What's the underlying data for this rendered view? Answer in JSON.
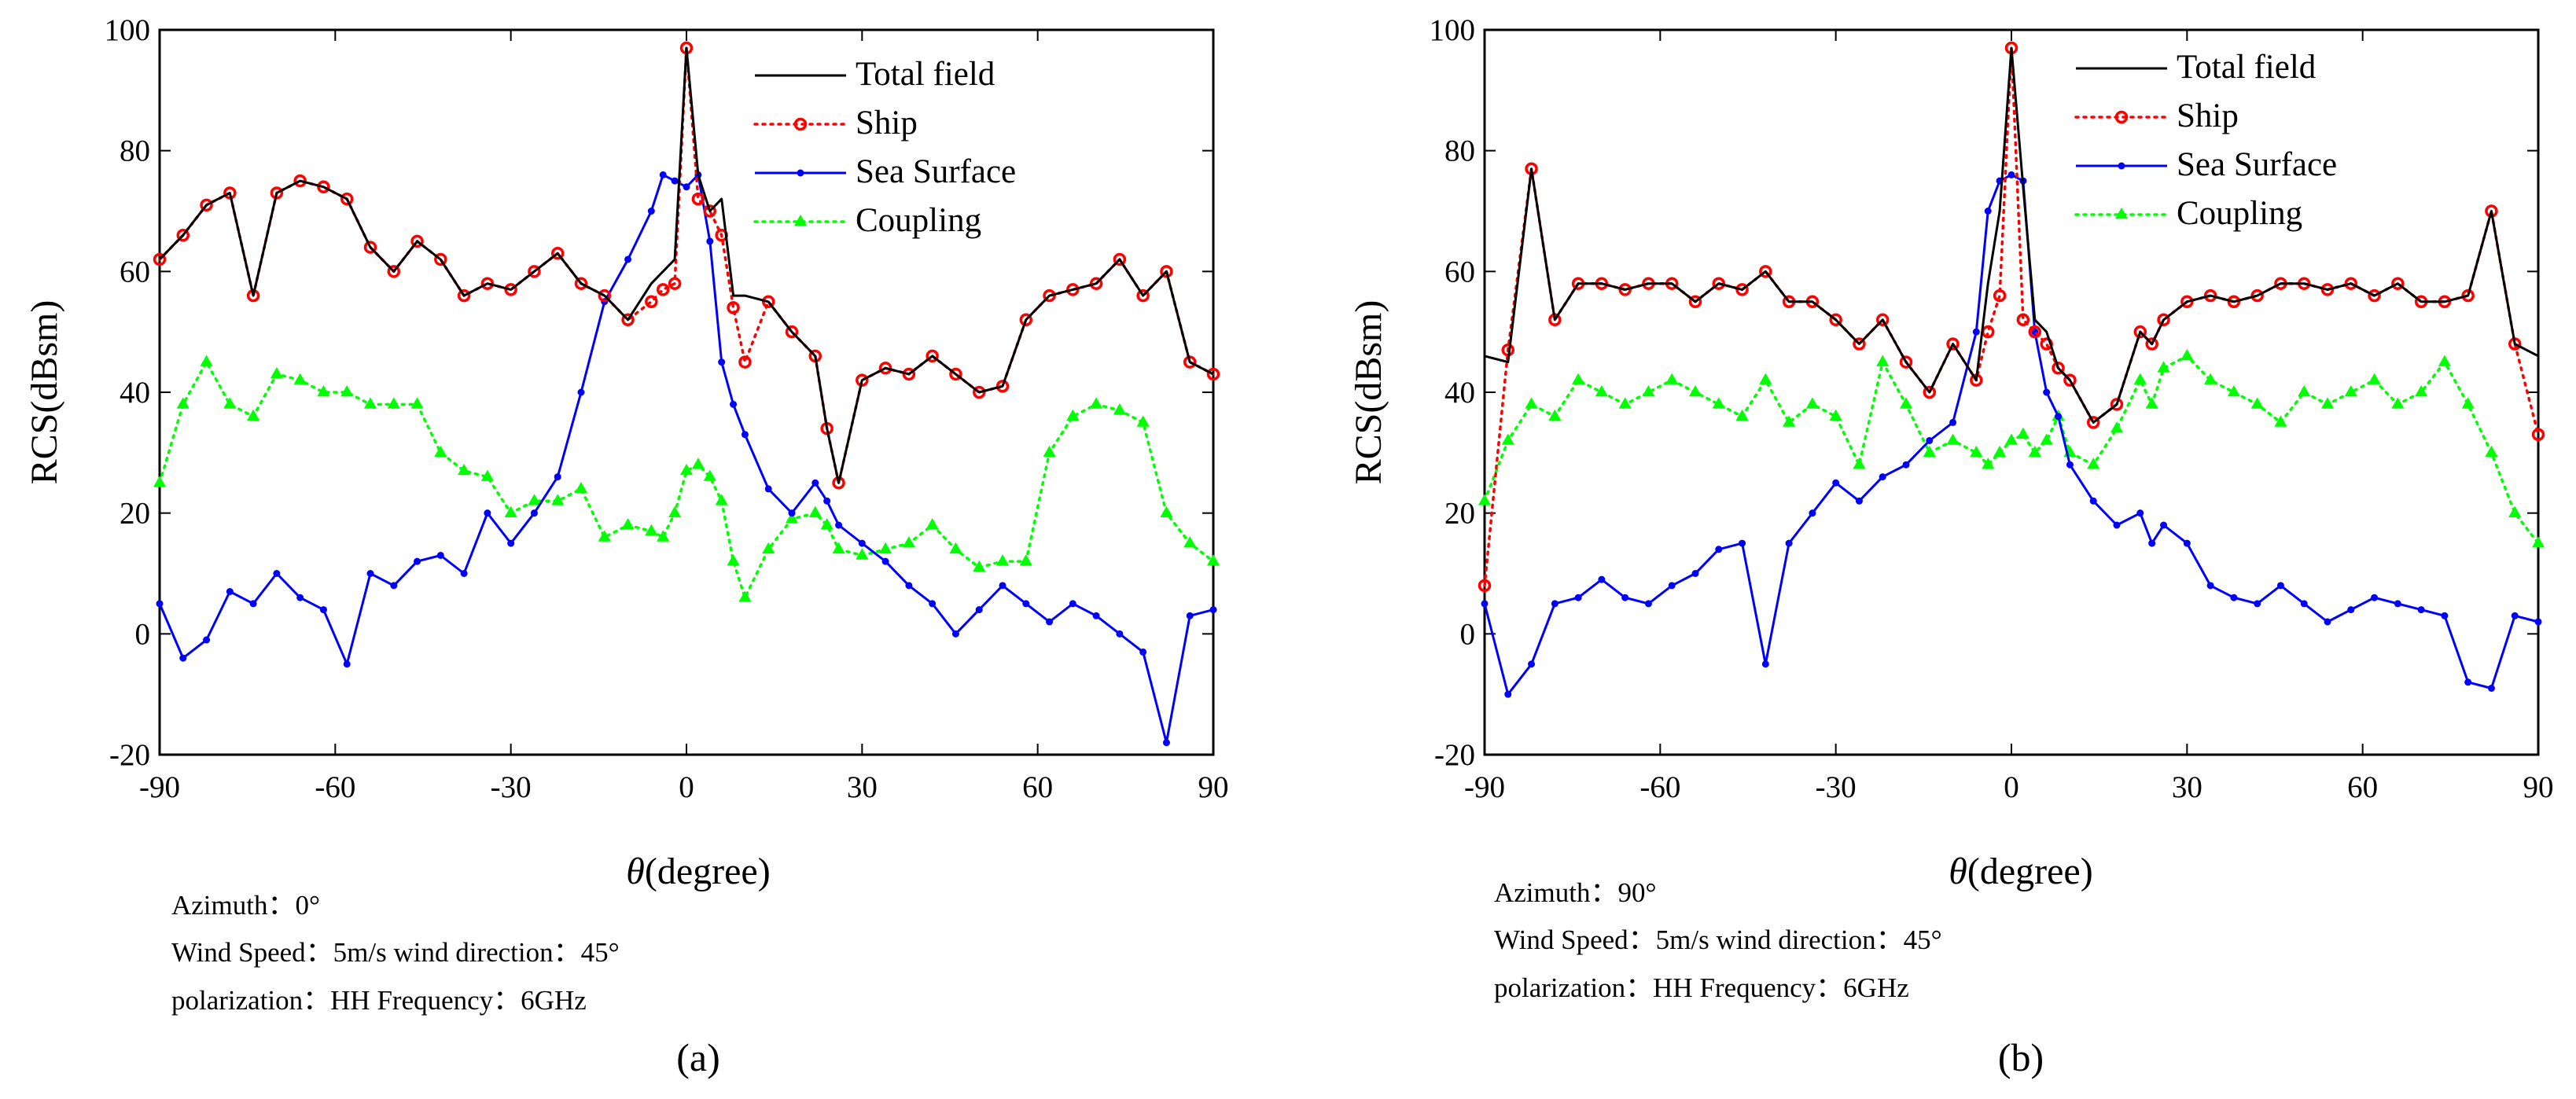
{
  "figure": {
    "panels": [
      {
        "caption": "(a)",
        "params": [
          "Azimuth：0°",
          "Wind Speed：5m/s    wind direction：45°",
          "polarization：HH    Frequency：6GHz"
        ]
      },
      {
        "caption": "(b)",
        "params": [
          "Azimuth：90°",
          "Wind Speed：5m/s    wind direction：45°",
          "polarization：HH    Frequency：6GHz"
        ]
      }
    ]
  },
  "chart_data": [
    {
      "type": "line",
      "title": "",
      "xlabel_symbol": "θ",
      "xlabel": "(degree)",
      "ylabel": "RCS(dBsm)",
      "xlim": [
        -90,
        90
      ],
      "ylim": [
        -20,
        100
      ],
      "xticks": [
        -90,
        -60,
        -30,
        0,
        30,
        60,
        90
      ],
      "yticks": [
        -20,
        0,
        20,
        40,
        60,
        80,
        100
      ],
      "legend_position": "top-right",
      "x": [
        -90,
        -86,
        -82,
        -78,
        -74,
        -70,
        -66,
        -62,
        -58,
        -54,
        -50,
        -46,
        -42,
        -38,
        -34,
        -30,
        -26,
        -22,
        -18,
        -14,
        -10,
        -6,
        -4,
        -2,
        0,
        2,
        4,
        6,
        8,
        10,
        14,
        18,
        22,
        24,
        26,
        30,
        34,
        38,
        42,
        46,
        50,
        54,
        58,
        62,
        66,
        70,
        74,
        78,
        82,
        86,
        90
      ],
      "series": [
        {
          "name": "Total field",
          "color": "#000000",
          "style": "solid",
          "marker": "none",
          "values": [
            62,
            66,
            71,
            73,
            56,
            73,
            75,
            74,
            72,
            64,
            60,
            65,
            62,
            56,
            58,
            57,
            60,
            63,
            58,
            56,
            52,
            58,
            60,
            62,
            97,
            76,
            70,
            72,
            56,
            56,
            55,
            50,
            46,
            34,
            25,
            42,
            44,
            43,
            46,
            43,
            40,
            41,
            52,
            56,
            57,
            58,
            62,
            56,
            60,
            45,
            43
          ]
        },
        {
          "name": "Ship",
          "color": "#ff0000",
          "style": "dotted",
          "marker": "circle",
          "values": [
            62,
            66,
            71,
            73,
            56,
            73,
            75,
            74,
            72,
            64,
            60,
            65,
            62,
            56,
            58,
            57,
            60,
            63,
            58,
            56,
            52,
            55,
            57,
            58,
            97,
            72,
            70,
            66,
            54,
            45,
            55,
            50,
            46,
            34,
            25,
            42,
            44,
            43,
            46,
            43,
            40,
            41,
            52,
            56,
            57,
            58,
            62,
            56,
            60,
            45,
            43
          ]
        },
        {
          "name": "Sea Surface",
          "color": "#0000ff",
          "style": "solid",
          "marker": "dot",
          "values": [
            5,
            -4,
            -1,
            7,
            5,
            10,
            6,
            4,
            -5,
            10,
            8,
            12,
            13,
            10,
            20,
            15,
            20,
            26,
            40,
            55,
            62,
            70,
            76,
            75,
            74,
            76,
            65,
            45,
            38,
            33,
            24,
            20,
            25,
            22,
            18,
            15,
            12,
            8,
            5,
            0,
            4,
            8,
            5,
            2,
            5,
            3,
            0,
            -3,
            -18,
            3,
            4
          ]
        },
        {
          "name": "Coupling",
          "color": "#00ff00",
          "style": "dotted",
          "marker": "triangle",
          "values": [
            25,
            38,
            45,
            38,
            36,
            43,
            42,
            40,
            40,
            38,
            38,
            38,
            30,
            27,
            26,
            20,
            22,
            22,
            24,
            16,
            18,
            17,
            16,
            20,
            27,
            28,
            26,
            22,
            12,
            6,
            14,
            19,
            20,
            18,
            14,
            13,
            14,
            15,
            18,
            14,
            11,
            12,
            12,
            30,
            36,
            38,
            37,
            35,
            20,
            15,
            12
          ]
        }
      ]
    },
    {
      "type": "line",
      "title": "",
      "xlabel_symbol": "θ",
      "xlabel": "(degree)",
      "ylabel": "RCS(dBsm)",
      "xlim": [
        -90,
        90
      ],
      "ylim": [
        -20,
        100
      ],
      "xticks": [
        -90,
        -60,
        -30,
        0,
        30,
        60,
        90
      ],
      "yticks": [
        -20,
        0,
        20,
        40,
        60,
        80,
        100
      ],
      "legend_position": "top-right",
      "x": [
        -90,
        -86,
        -82,
        -78,
        -74,
        -70,
        -66,
        -62,
        -58,
        -54,
        -50,
        -46,
        -42,
        -38,
        -34,
        -30,
        -26,
        -22,
        -18,
        -14,
        -10,
        -6,
        -4,
        -2,
        0,
        2,
        4,
        6,
        8,
        10,
        14,
        18,
        22,
        24,
        26,
        30,
        34,
        38,
        42,
        46,
        50,
        54,
        58,
        62,
        66,
        70,
        74,
        78,
        82,
        86,
        90
      ],
      "series": [
        {
          "name": "Total field",
          "color": "#000000",
          "style": "solid",
          "marker": "none",
          "values": [
            46,
            45,
            77,
            52,
            58,
            58,
            57,
            58,
            58,
            55,
            58,
            57,
            60,
            55,
            55,
            52,
            48,
            52,
            45,
            40,
            48,
            42,
            58,
            70,
            97,
            74,
            52,
            50,
            44,
            42,
            35,
            38,
            50,
            48,
            52,
            55,
            56,
            55,
            56,
            58,
            58,
            57,
            58,
            56,
            58,
            55,
            55,
            56,
            70,
            48,
            46
          ]
        },
        {
          "name": "Ship",
          "color": "#ff0000",
          "style": "dotted",
          "marker": "circle",
          "values": [
            8,
            47,
            77,
            52,
            58,
            58,
            57,
            58,
            58,
            55,
            58,
            57,
            60,
            55,
            55,
            52,
            48,
            52,
            45,
            40,
            48,
            42,
            50,
            56,
            97,
            52,
            50,
            48,
            44,
            42,
            35,
            38,
            50,
            48,
            52,
            55,
            56,
            55,
            56,
            58,
            58,
            57,
            58,
            56,
            58,
            55,
            55,
            56,
            70,
            48,
            33
          ]
        },
        {
          "name": "Sea Surface",
          "color": "#0000ff",
          "style": "solid",
          "marker": "dot",
          "values": [
            5,
            -10,
            -5,
            5,
            6,
            9,
            6,
            5,
            8,
            10,
            14,
            15,
            -5,
            15,
            20,
            25,
            22,
            26,
            28,
            32,
            35,
            50,
            70,
            75,
            76,
            75,
            50,
            40,
            36,
            28,
            22,
            18,
            20,
            15,
            18,
            15,
            8,
            6,
            5,
            8,
            5,
            2,
            4,
            6,
            5,
            4,
            3,
            -8,
            -9,
            3,
            2
          ]
        },
        {
          "name": "Coupling",
          "color": "#00ff00",
          "style": "dotted",
          "marker": "triangle",
          "values": [
            22,
            32,
            38,
            36,
            42,
            40,
            38,
            40,
            42,
            40,
            38,
            36,
            42,
            35,
            38,
            36,
            28,
            45,
            38,
            30,
            32,
            30,
            28,
            30,
            32,
            33,
            30,
            32,
            36,
            30,
            28,
            34,
            42,
            38,
            44,
            46,
            42,
            40,
            38,
            35,
            40,
            38,
            40,
            42,
            38,
            40,
            45,
            38,
            30,
            20,
            15
          ]
        }
      ]
    }
  ]
}
